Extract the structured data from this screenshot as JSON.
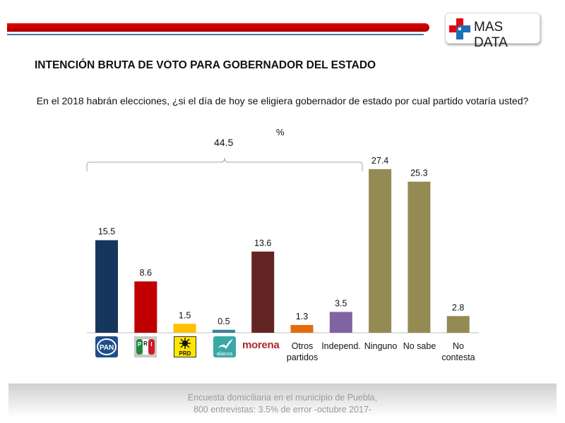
{
  "header": {
    "brand": "MAS DATA",
    "brand_colors": {
      "red": "#e30613",
      "blue": "#1f6fb5",
      "bar_red": "#d80000",
      "bar_blue": "#3a7bb5"
    }
  },
  "title": "INTENCIÓN BRUTA DE VOTO PARA GOBERNADOR DEL ESTADO",
  "question": "En el 2018 habrán elecciones, ¿si el día de hoy se eligiera gobernador de estado por cual partido votaría usted?",
  "unit_label": "%",
  "bracket": {
    "value": "44.5",
    "span": [
      "PAN",
      "Independ."
    ]
  },
  "footer": {
    "line1": "Encuesta domiciliaria en el municipio de Puebla,",
    "line2": "800 entrevistas: 3.5% de error -octubre 2017-"
  },
  "party_logos": {
    "pan": "PAN",
    "pri_letters": [
      "P",
      "R",
      "I"
    ],
    "prd": "PRD",
    "alianza": "alianza",
    "morena": "morena"
  },
  "chart_data": {
    "type": "bar",
    "title": "INTENCIÓN BRUTA DE VOTO PARA GOBERNADOR DEL ESTADO",
    "xlabel": "",
    "ylabel": "%",
    "ylim": [
      0,
      30
    ],
    "grid": false,
    "categories": [
      "PAN",
      "PRI",
      "PRD",
      "Nueva Alianza",
      "morena",
      "Otros partidos",
      "Independ.",
      "Ninguno",
      "No sabe",
      "No contesta"
    ],
    "values": [
      15.5,
      8.6,
      1.5,
      0.5,
      13.6,
      1.3,
      3.5,
      27.4,
      25.3,
      2.8
    ],
    "value_labels": [
      "15.5",
      "8.6",
      "1.5",
      "0.5",
      "13.6",
      "1.3",
      "3.5",
      "27.4",
      "25.3",
      "2.8"
    ],
    "colors": [
      "#17365d",
      "#c00000",
      "#ffc000",
      "#31849b",
      "#632523",
      "#e46c0a",
      "#8064a2",
      "#948a54",
      "#948a54",
      "#948a54"
    ],
    "tick_labels": [
      "",
      "",
      "",
      "",
      "",
      "Otros\npartidos",
      "Independ.",
      "Ninguno",
      "No sabe",
      "No\ncontesta"
    ],
    "annotations": [
      {
        "text": "44.5",
        "type": "bracket",
        "from": "PAN",
        "to": "Independ."
      }
    ]
  }
}
